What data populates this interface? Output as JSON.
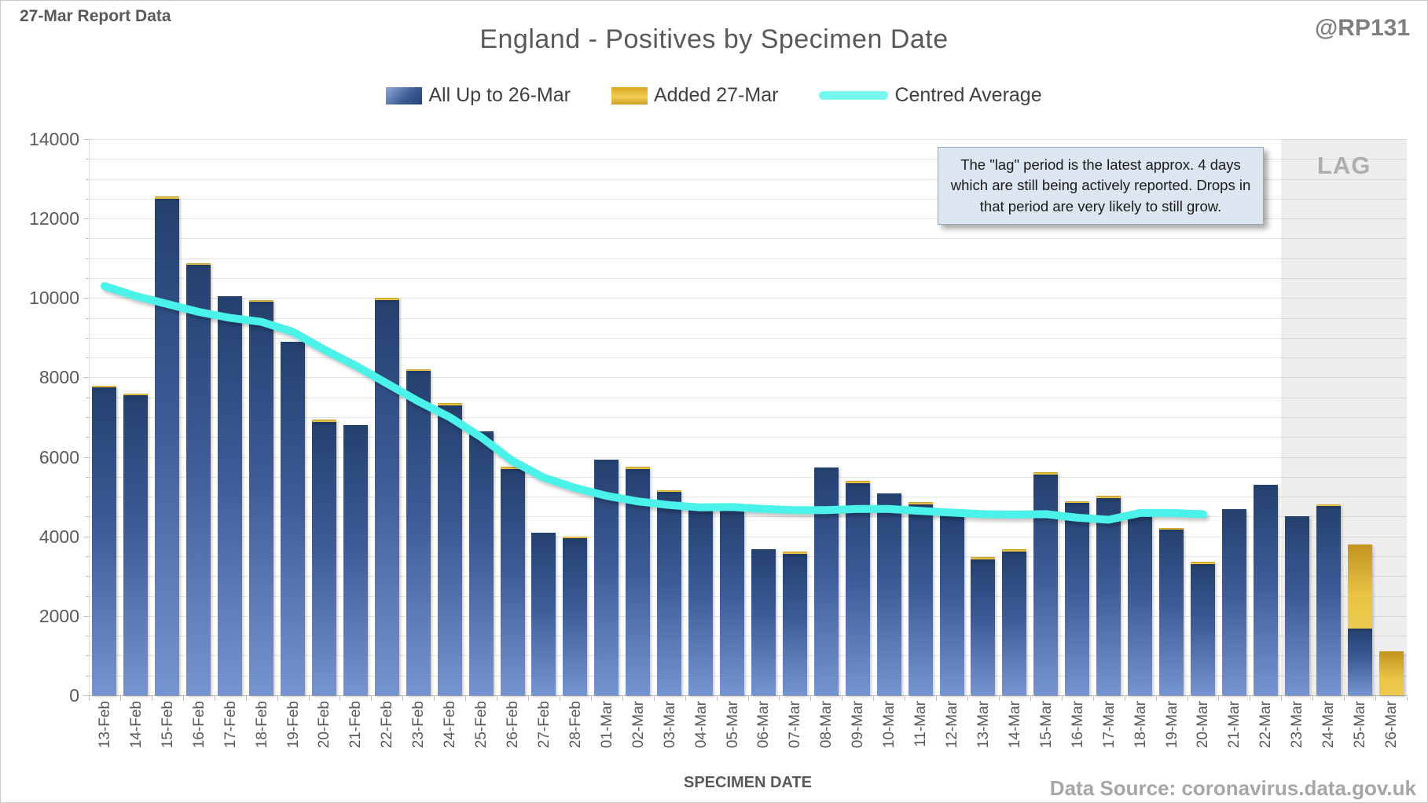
{
  "header": {
    "report_label": "27-Mar Report Data",
    "handle": "@RP131",
    "title": "England - Positives by Specimen Date"
  },
  "legend": [
    {
      "label": "All Up to 26-Mar",
      "swatch": "blue-gradient-bar"
    },
    {
      "label": "Added 27-Mar",
      "swatch": "gold-bar"
    },
    {
      "label": "Centred Average",
      "swatch": "cyan-line"
    }
  ],
  "annotation": {
    "text": "The \"lag\" period is the latest approx. 4 days which are still being actively reported.  Drops in that period are very likely to still grow."
  },
  "lag": {
    "label": "LAG",
    "start_category": "23-Mar"
  },
  "axes": {
    "x_title": "SPECIMEN DATE",
    "y_ticks": [
      0,
      2000,
      4000,
      6000,
      8000,
      10000,
      12000,
      14000
    ]
  },
  "footer": {
    "source": "Data Source: coronavirus.data.gov.uk"
  },
  "colors": {
    "bar_top": "#24406e",
    "bar_bottom": "#7495d2",
    "gold": "#e0b02e",
    "average_line": "#4af2e9",
    "annotation_bg": "#dce6f1",
    "lag_text": "#aeaeae"
  },
  "chart_data": {
    "type": "bar",
    "title": "England - Positives by Specimen Date",
    "xlabel": "SPECIMEN DATE",
    "ylabel": "",
    "ylim": [
      0,
      14000
    ],
    "gridline_interval": 500,
    "legend_position": "top",
    "categories": [
      "13-Feb",
      "14-Feb",
      "15-Feb",
      "16-Feb",
      "17-Feb",
      "18-Feb",
      "19-Feb",
      "20-Feb",
      "21-Feb",
      "22-Feb",
      "23-Feb",
      "24-Feb",
      "25-Feb",
      "26-Feb",
      "27-Feb",
      "28-Feb",
      "01-Mar",
      "02-Mar",
      "03-Mar",
      "04-Mar",
      "05-Mar",
      "06-Mar",
      "07-Mar",
      "08-Mar",
      "09-Mar",
      "10-Mar",
      "11-Mar",
      "12-Mar",
      "13-Mar",
      "14-Mar",
      "15-Mar",
      "16-Mar",
      "17-Mar",
      "18-Mar",
      "19-Mar",
      "20-Mar",
      "21-Mar",
      "22-Mar",
      "23-Mar",
      "24-Mar",
      "25-Mar",
      "26-Mar"
    ],
    "series": [
      {
        "name": "All Up to 26-Mar",
        "type": "bar",
        "values": [
          7750,
          7550,
          12500,
          10830,
          10050,
          9900,
          8900,
          6890,
          6800,
          9950,
          8160,
          7300,
          6640,
          5700,
          4100,
          3950,
          5940,
          5700,
          5120,
          4710,
          4660,
          3680,
          3560,
          5740,
          5340,
          5090,
          4810,
          4590,
          3430,
          3620,
          5560,
          4840,
          4970,
          4500,
          4170,
          3310,
          4680,
          5290,
          4510,
          4760,
          1680,
          0
        ]
      },
      {
        "name": "Added 27-Mar",
        "type": "bar-stacked",
        "values": [
          30,
          20,
          40,
          40,
          0,
          40,
          0,
          40,
          0,
          40,
          30,
          40,
          0,
          40,
          0,
          40,
          0,
          40,
          40,
          0,
          0,
          0,
          40,
          0,
          40,
          0,
          40,
          0,
          40,
          40,
          40,
          40,
          40,
          0,
          40,
          40,
          0,
          0,
          0,
          50,
          2110,
          1100
        ]
      },
      {
        "name": "Centred Average",
        "type": "line",
        "values": [
          10300,
          10050,
          9850,
          9650,
          9500,
          9400,
          9150,
          8700,
          8300,
          7850,
          7400,
          7000,
          6500,
          5900,
          5480,
          5220,
          5020,
          4880,
          4790,
          4730,
          4740,
          4690,
          4660,
          4660,
          4690,
          4690,
          4640,
          4600,
          4560,
          4550,
          4560,
          4470,
          4420,
          4590,
          4590,
          4560,
          null,
          null,
          null,
          null,
          null,
          null
        ]
      }
    ],
    "lag_region_categories": [
      "23-Mar",
      "24-Mar",
      "25-Mar",
      "26-Mar"
    ]
  }
}
